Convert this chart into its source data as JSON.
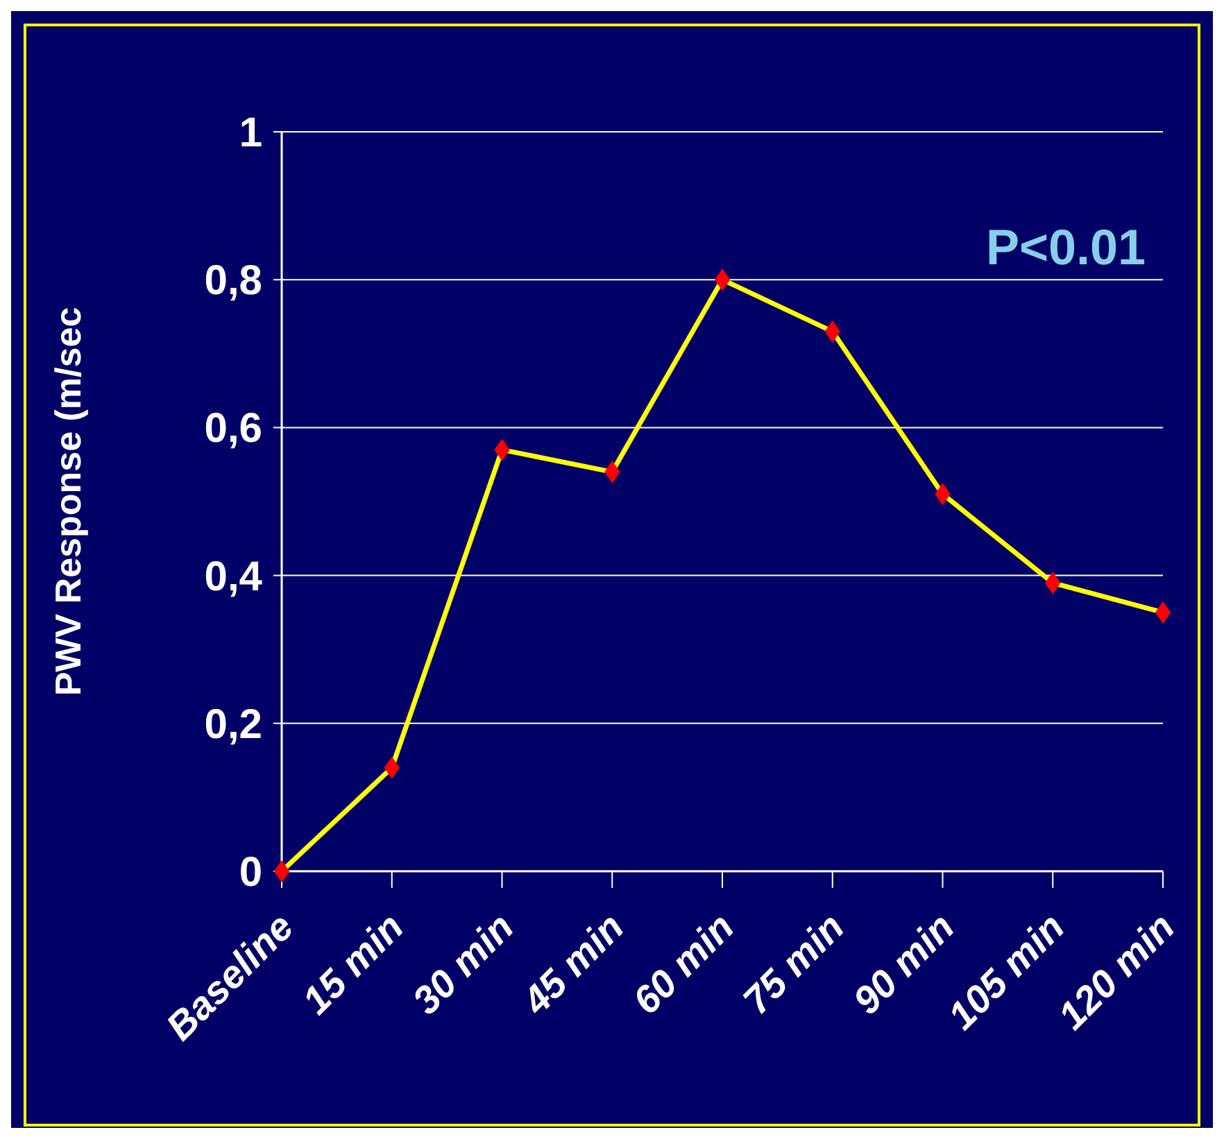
{
  "chart_data": {
    "type": "line",
    "ylabel": "PWV Response (m/sec",
    "categories": [
      "Baseline",
      "15 min",
      "30 min",
      "45 min",
      "60 min",
      "75 min",
      "90 min",
      "105 min",
      "120 min"
    ],
    "series": [
      {
        "color": "#ffff00",
        "colors": [
          "#ff0000",
          "#ff0000",
          "#ff0000",
          "#ff0000",
          "#ff0000",
          "#ff0000",
          "#ff0000",
          "#ff0000",
          "#ff0000"
        ],
        "values": [
          0,
          0.14,
          0.57,
          0.54,
          0.8,
          0.73,
          0.51,
          0.39,
          0.35
        ]
      }
    ],
    "ylim": [
      0,
      1
    ],
    "yticks": [
      0,
      {
        "value": 0.2,
        "label": "0,2"
      },
      {
        "value": 0.4,
        "label": "0,4"
      },
      {
        "value": 0.6,
        "label": "0,6"
      },
      {
        "value": 0.8,
        "label": "0,8"
      },
      1
    ],
    "grid": "y",
    "marker": "diamond",
    "line_style": "solid",
    "annotations": [
      "P<0.01"
    ]
  }
}
